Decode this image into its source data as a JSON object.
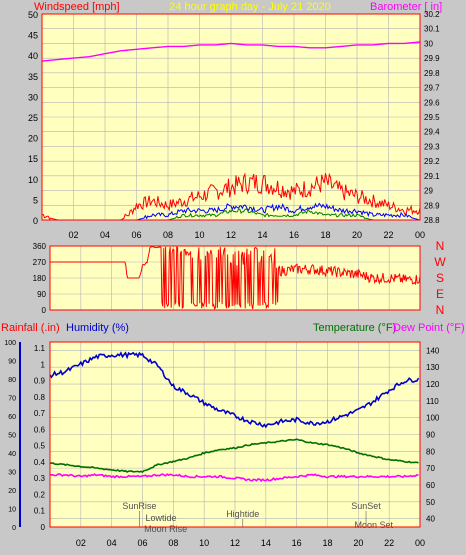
{
  "colors": {
    "background": "#c8c8c8",
    "plot_bg": "#ffffc0",
    "grid": "#b4b4b4",
    "frame": "#ff0000",
    "wind": "#ff0000",
    "gust_blue": "#0000ff",
    "gust_green": "#008000",
    "barometer": "#ff00ff",
    "title": "#ffff00",
    "humidity": "#0000cc",
    "temperature": "#007000",
    "dewpoint": "#ff00ff",
    "rain": "#ff0000"
  },
  "chart_data": [
    {
      "type": "line",
      "id": "wind-barometer",
      "title": "24 hour graph day - July 21 2020",
      "left_label": "Windspeed [mph]",
      "right_label": "Barometer [ in]",
      "left_ylim": [
        0,
        50
      ],
      "left_ticks": [
        "0",
        "5",
        "10",
        "15",
        "20",
        "25",
        "30",
        "35",
        "40",
        "45",
        "50"
      ],
      "right_ylim": [
        28.8,
        30.2
      ],
      "right_ticks": [
        "28.8",
        "28.9",
        "29",
        "29.1",
        "29.2",
        "29.3",
        "29.4",
        "29.5",
        "29.6",
        "29.7",
        "29.8",
        "29.9",
        "30",
        "30.1",
        "30.2"
      ],
      "x_ticks": [
        "02",
        "04",
        "06",
        "08",
        "10",
        "12",
        "14",
        "16",
        "18",
        "20",
        "22",
        "00"
      ],
      "xlim": [
        0,
        24
      ],
      "grid": true,
      "series": [
        {
          "role": "barometer",
          "x": [
            0,
            1,
            2,
            3,
            4,
            5,
            6,
            7,
            8,
            9,
            10,
            11,
            12,
            13,
            14,
            15,
            16,
            17,
            18,
            19,
            20,
            21,
            22,
            23,
            24
          ],
          "y": [
            29.88,
            29.89,
            29.9,
            29.91,
            29.93,
            29.95,
            29.96,
            29.97,
            29.98,
            29.98,
            29.99,
            29.99,
            30.0,
            29.99,
            29.99,
            29.98,
            29.98,
            29.97,
            29.97,
            29.98,
            29.99,
            29.99,
            30.0,
            30.0,
            30.01
          ]
        },
        {
          "role": "wind_gust",
          "x": [
            0,
            1,
            2,
            3,
            4,
            5,
            5.5,
            6,
            7,
            8,
            9,
            10,
            11,
            12,
            13,
            14,
            15,
            16,
            17,
            18,
            19,
            20,
            21,
            22,
            23,
            24
          ],
          "y": [
            1,
            0,
            0,
            0,
            0,
            0,
            1,
            3,
            4,
            3,
            4,
            5,
            6,
            7,
            8,
            8,
            7,
            6,
            7,
            8,
            6,
            5,
            4,
            3,
            2,
            2
          ]
        },
        {
          "role": "wind_avg_blue",
          "x": [
            0,
            6,
            7,
            8,
            9,
            10,
            11,
            12,
            13,
            14,
            15,
            16,
            17,
            18,
            19,
            20,
            21,
            22,
            23,
            24
          ],
          "y": [
            0,
            0,
            1,
            1,
            2,
            2,
            2,
            3,
            3,
            2,
            3,
            2,
            3,
            3,
            2,
            2,
            1,
            1,
            1,
            0
          ]
        },
        {
          "role": "wind_green",
          "x": [
            0,
            8,
            9,
            10,
            11,
            12,
            13,
            14,
            15,
            16,
            17,
            18,
            19,
            20,
            21,
            22,
            24
          ],
          "y": [
            0,
            0,
            1,
            1,
            1,
            2,
            2,
            1,
            1,
            1,
            2,
            1,
            1,
            1,
            0,
            0,
            0
          ]
        }
      ]
    },
    {
      "type": "scatter",
      "id": "wind-direction",
      "ylim": [
        0,
        360
      ],
      "left_ticks": [
        "0",
        "90",
        "180",
        "270",
        "360"
      ],
      "compass": [
        "N",
        "W",
        "S",
        "E",
        "N"
      ],
      "series": [
        {
          "role": "direction",
          "x": [
            0,
            4.9,
            5.0,
            5.8,
            6.0,
            6.3,
            6.5,
            7.0,
            7.5,
            8.0,
            9.0,
            10.0,
            11.0,
            12.0,
            13.0,
            14.0,
            15.0,
            16.0,
            17.0,
            18.0,
            19.0,
            20.0,
            21.0,
            22.0,
            23.0,
            24.0
          ],
          "y": [
            270,
            270,
            180,
            180,
            250,
            270,
            355,
            355,
            355,
            355,
            300,
            280,
            300,
            250,
            260,
            280,
            220,
            230,
            230,
            220,
            210,
            200,
            180,
            180,
            170,
            175
          ]
        }
      ]
    },
    {
      "type": "line",
      "id": "weather",
      "left_label_1": "Rainfall (.in)",
      "left_label_2": "Humidity (%)",
      "right_label_1": "Temperature (°F)",
      "right_label_2": "Dew Point (°F)",
      "rain_ticks": [
        "0",
        "0.1",
        "0.2",
        "0.3",
        "0.4",
        "0.5",
        "0.6",
        "0.7",
        "0.8",
        "0.9",
        "1",
        "1.1"
      ],
      "humidity_ticks": [
        "0",
        "10",
        "20",
        "30",
        "40",
        "50",
        "60",
        "70",
        "80",
        "90",
        "100"
      ],
      "temp_ticks": [
        "40",
        "50",
        "60",
        "70",
        "80",
        "90",
        "100",
        "110",
        "120",
        "130",
        "140"
      ],
      "temp_ylim": [
        35,
        145
      ],
      "humidity_ylim": [
        0,
        100
      ],
      "x_ticks": [
        "02",
        "04",
        "06",
        "08",
        "10",
        "12",
        "14",
        "16",
        "18",
        "20",
        "22",
        "00"
      ],
      "annotations": [
        "SunRise",
        "Lowtide",
        "Moon Rise",
        "Hightide",
        "SunSet",
        "Moon Set"
      ],
      "series": [
        {
          "role": "humidity",
          "x": [
            0,
            1,
            2,
            3,
            4,
            5,
            6,
            7,
            8,
            9,
            10,
            11,
            12,
            13,
            14,
            15,
            16,
            17,
            18,
            19,
            20,
            21,
            22,
            23,
            24
          ],
          "y": [
            82,
            84,
            88,
            92,
            93,
            93,
            93,
            87,
            76,
            72,
            67,
            63,
            60,
            57,
            55,
            57,
            58,
            56,
            57,
            60,
            63,
            68,
            74,
            79,
            80
          ]
        },
        {
          "role": "temperature",
          "x": [
            0,
            1,
            2,
            3,
            4,
            5,
            6,
            7,
            8,
            9,
            10,
            11,
            12,
            13,
            14,
            15,
            16,
            17,
            18,
            19,
            20,
            21,
            22,
            23,
            24
          ],
          "y": [
            73,
            72,
            71,
            70,
            69,
            68,
            68,
            72,
            74,
            76,
            79,
            81,
            82,
            84,
            85,
            86,
            87,
            85,
            84,
            82,
            79,
            77,
            75,
            74,
            73
          ]
        },
        {
          "role": "dewpoint",
          "x": [
            0,
            1,
            2,
            3,
            4,
            5,
            6,
            7,
            8,
            9,
            10,
            11,
            12,
            13,
            14,
            15,
            16,
            17,
            18,
            19,
            20,
            21,
            22,
            23,
            24
          ],
          "y": [
            66,
            66,
            65,
            66,
            65,
            65,
            65,
            66,
            66,
            65,
            65,
            65,
            64,
            63,
            63,
            64,
            65,
            66,
            65,
            65,
            65,
            65,
            65,
            65,
            66
          ]
        }
      ]
    }
  ]
}
